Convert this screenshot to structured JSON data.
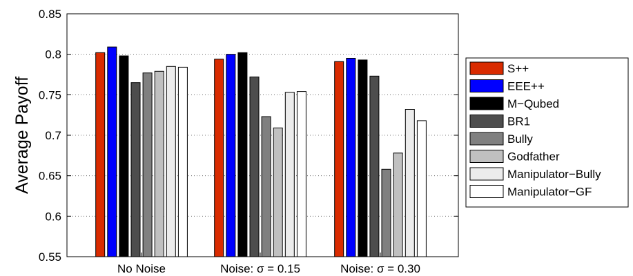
{
  "chart_data": {
    "type": "bar",
    "title": "",
    "xlabel": "",
    "ylabel": "Average Payoff",
    "ylim": [
      0.55,
      0.85
    ],
    "yticks": [
      "0.55",
      "0.6",
      "0.65",
      "0.7",
      "0.75",
      "0.8",
      "0.85"
    ],
    "grid": "horizontal dotted",
    "legend_position": "right",
    "categories": [
      "No Noise",
      "Noise:  σ = 0.15",
      "Noise:  σ = 0.30"
    ],
    "series": [
      {
        "name": "S++",
        "color": "#d92b00",
        "values": [
          0.802,
          0.794,
          0.791
        ]
      },
      {
        "name": "EEE++",
        "color": "#0000ff",
        "values": [
          0.809,
          0.8,
          0.795
        ]
      },
      {
        "name": "M−Qubed",
        "color": "#000000",
        "values": [
          0.798,
          0.802,
          0.793
        ]
      },
      {
        "name": "BR1",
        "color": "#4d4d4d",
        "values": [
          0.765,
          0.772,
          0.773
        ]
      },
      {
        "name": "Bully",
        "color": "#808080",
        "values": [
          0.777,
          0.723,
          0.658
        ]
      },
      {
        "name": "Godfather",
        "color": "#c0c0c0",
        "values": [
          0.779,
          0.709,
          0.678
        ]
      },
      {
        "name": "Manipulator−Bully",
        "color": "#ececec",
        "values": [
          0.785,
          0.753,
          0.732
        ]
      },
      {
        "name": "Manipulator−GF",
        "color": "#ffffff",
        "values": [
          0.784,
          0.754,
          0.718
        ]
      }
    ]
  }
}
